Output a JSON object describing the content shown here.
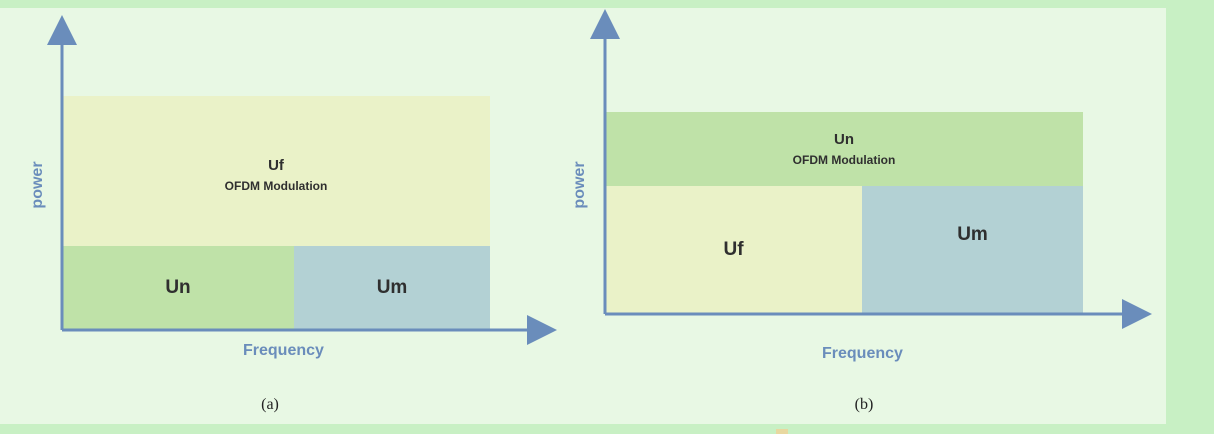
{
  "diagram_a": {
    "top_block": {
      "label": "Uf",
      "sub_label": "OFDM Modulation"
    },
    "bottom_left": {
      "label": "Un"
    },
    "bottom_right": {
      "label": "Um"
    },
    "y_axis_label": "power",
    "x_axis_label": "Frequency",
    "caption": "(a)"
  },
  "diagram_b": {
    "top_block": {
      "label": "Un",
      "sub_label": "OFDM Modulation"
    },
    "bottom_left": {
      "label": "Uf"
    },
    "bottom_right": {
      "label": "Um"
    },
    "y_axis_label": "power",
    "x_axis_label": "Frequency",
    "caption": "(b)"
  },
  "colors": {
    "page_background": "#c8f0c4",
    "panel_background": "#e8f8e4",
    "yellow_block": "#eaf2c8",
    "green_block": "#bfe2a8",
    "blue_block": "#b3d1d4",
    "axis": "#6a8dbb"
  }
}
